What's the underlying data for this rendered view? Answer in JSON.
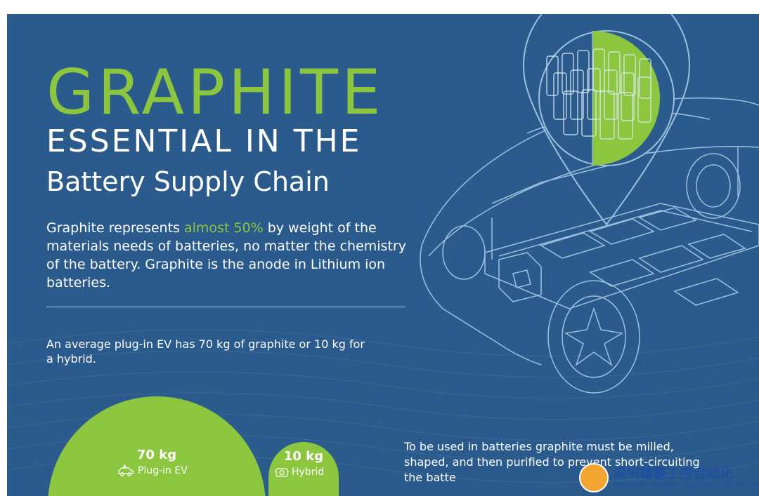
{
  "header": {
    "title": "GRAPHITE",
    "subtitle_line1": "ESSENTIAL IN THE",
    "subtitle_line2": "Battery Supply Chain"
  },
  "intro": {
    "text_before": "Graphite represents ",
    "highlight": "almost 50%",
    "text_after": " by weight of the materials needs of batteries, no matter the chemistry of the battery. Graphite is the anode in Lithium ion batteries."
  },
  "weights": {
    "statement": "An average plug-in EV has 70 kg of graphite or 10 kg for a hybrid.",
    "plugin": {
      "value": "70 kg",
      "label": "Plug-in EV",
      "icon": "electric-car-icon",
      "kg": 70
    },
    "hybrid": {
      "value": "10 kg",
      "label": "Hybrid",
      "icon": "hybrid-engine-icon",
      "kg": 10
    }
  },
  "processing": {
    "text": "To be used in batteries graphite must be milled, shaped, and then purified to prevent short-circuiting the batte"
  },
  "watermark": {
    "chinese": "深圳雄霸工控自动化",
    "english": "SHENZHEN XIONGBA INDUSTRIAL AUTOMATION"
  },
  "colors": {
    "background": "#2a5b8c",
    "accent_green": "#8cc63f",
    "line_art": "#9cc0e0",
    "text": "#ffffff"
  }
}
